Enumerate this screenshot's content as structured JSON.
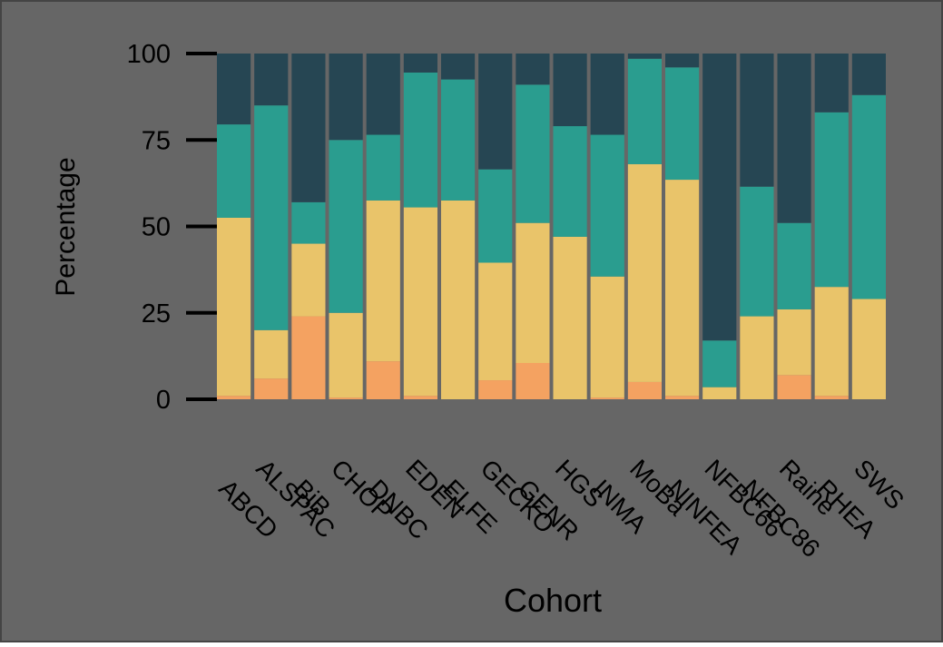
{
  "chart_data": {
    "type": "bar",
    "stacked": true,
    "xlabel": "Cohort",
    "ylabel": "Percentage",
    "ylim": [
      0,
      100
    ],
    "yticks": [
      0,
      25,
      50,
      75,
      100
    ],
    "grid": false,
    "legend": "none",
    "colors": {
      "background": "#666666",
      "border": "#444444",
      "separator": "#ffffff",
      "axis": "#000000"
    },
    "categories": [
      "ABCD",
      "ALSPAC",
      "BiB",
      "CHOP",
      "DNBC",
      "EDEN",
      "ELFE",
      "GECKO",
      "GENR",
      "HGS",
      "INMA",
      "MoBa",
      "NINFEA",
      "NFBC66",
      "NFBC86",
      "Raine",
      "RHEA",
      "SWS"
    ],
    "series": [
      {
        "color": "#F4A261",
        "values": [
          1,
          6,
          24,
          0.5,
          11,
          1,
          0,
          5.5,
          10.5,
          0,
          0.5,
          5,
          1,
          0,
          0,
          7,
          1,
          0
        ]
      },
      {
        "color": "#E9C46A",
        "values": [
          51.5,
          14,
          21,
          24.5,
          46.5,
          54.5,
          57.5,
          34,
          40.5,
          47,
          35,
          63,
          62.5,
          3.5,
          24,
          19,
          31.5,
          29
        ]
      },
      {
        "color": "#2A9D8F",
        "values": [
          27,
          65,
          12,
          50,
          19,
          39,
          35,
          27,
          40,
          32,
          41,
          30.5,
          32.5,
          13.5,
          37.5,
          25,
          50.5,
          59
        ]
      },
      {
        "color": "#264653",
        "values": [
          20.5,
          15,
          43,
          25,
          23.5,
          5.5,
          7.5,
          33.5,
          9,
          21,
          23.5,
          1.5,
          4,
          83,
          38.5,
          49,
          17,
          12
        ]
      }
    ]
  }
}
